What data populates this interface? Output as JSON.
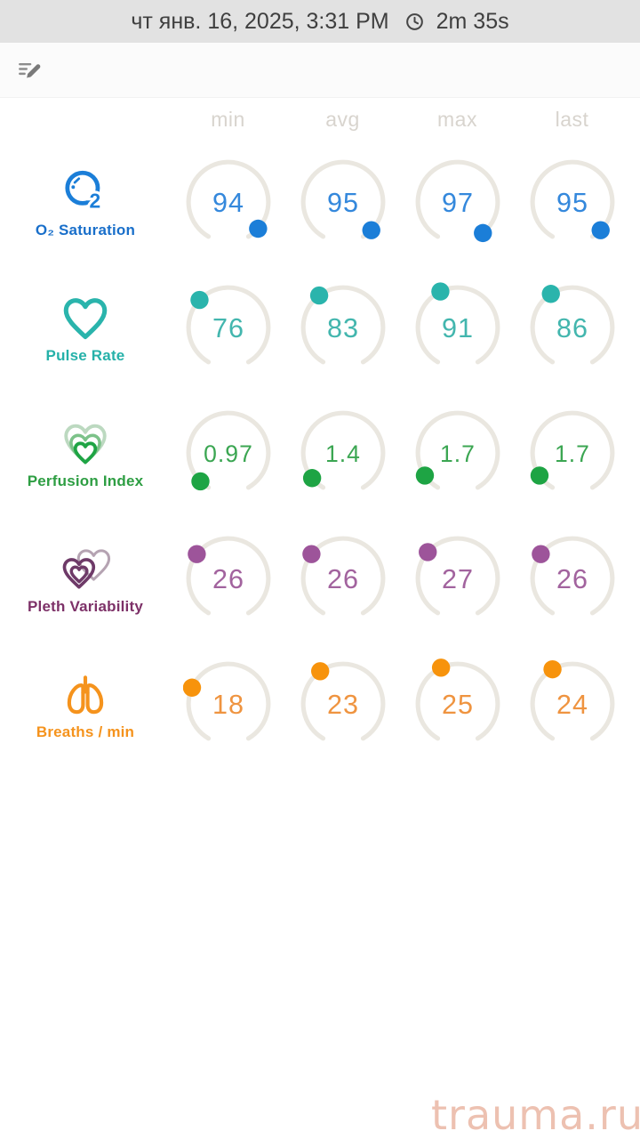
{
  "header": {
    "datetime": "чт янв. 16, 2025, 3:31 PM",
    "duration": "2m 35s",
    "clock_icon": "clock"
  },
  "toolbar": {
    "edit_icon": "edit-note"
  },
  "columns": [
    "min",
    "avg",
    "max",
    "last"
  ],
  "gauge": {
    "arc_color": "#eae7e0",
    "column_header_color": "#d8d4ce"
  },
  "metrics": [
    {
      "id": "o2-saturation",
      "label": "O₂ Saturation",
      "icon": "o2-bubble-icon",
      "dot_color": "#1b7ed8",
      "value_color": "#3488dc",
      "label_color": "#196fca",
      "values": [
        "94",
        "95",
        "97",
        "95"
      ],
      "dot_fractions": [
        0.94,
        0.95,
        0.97,
        0.95
      ]
    },
    {
      "id": "pulse-rate",
      "label": "Pulse Rate",
      "icon": "heart-icon",
      "dot_color": "#2ab4ac",
      "value_color": "#43b6ae",
      "label_color": "#25b1a9",
      "values": [
        "76",
        "83",
        "91",
        "86"
      ],
      "dot_fractions": [
        0.345,
        0.377,
        0.414,
        0.391
      ]
    },
    {
      "id": "perfusion-index",
      "label": "Perfusion Index",
      "icon": "nested-hearts-icon",
      "dot_color": "#1ea444",
      "value_color": "#3ba652",
      "label_color": "#2e9e43",
      "values": [
        "0.97",
        "1.4",
        "1.7",
        "1.7"
      ],
      "dot_fractions": [
        0.049,
        0.07,
        0.085,
        0.085
      ]
    },
    {
      "id": "pleth-variability",
      "label": "Pleth Variability",
      "icon": "overlapping-hearts-icon",
      "dot_color": "#9d549a",
      "value_color": "#a2639e",
      "label_color": "#7d3168",
      "values": [
        "26",
        "26",
        "27",
        "26"
      ],
      "dot_fractions": [
        0.325,
        0.325,
        0.3375,
        0.325
      ]
    },
    {
      "id": "breaths-per-min",
      "label": "Breaths / min",
      "icon": "lungs-icon",
      "dot_color": "#f7930c",
      "value_color": "#ef9440",
      "label_color": "#f5931d",
      "values": [
        "18",
        "23",
        "25",
        "24"
      ],
      "dot_fractions": [
        0.28,
        0.383,
        0.417,
        0.4
      ]
    }
  ],
  "watermark": {
    "text": "trauma.ru",
    "color": "#edc1b1"
  },
  "chart_data": {
    "type": "table",
    "title": "Vital signs session summary (gauges)",
    "columns": [
      "min",
      "avg",
      "max",
      "last"
    ],
    "rows": [
      {
        "metric": "O₂ Saturation",
        "values": [
          94,
          95,
          97,
          95
        ]
      },
      {
        "metric": "Pulse Rate",
        "values": [
          76,
          83,
          91,
          86
        ]
      },
      {
        "metric": "Perfusion Index",
        "values": [
          0.97,
          1.4,
          1.7,
          1.7
        ]
      },
      {
        "metric": "Pleth Variability",
        "values": [
          26,
          26,
          27,
          26
        ]
      },
      {
        "metric": "Breaths / min",
        "values": [
          18,
          23,
          25,
          24
        ]
      }
    ]
  }
}
